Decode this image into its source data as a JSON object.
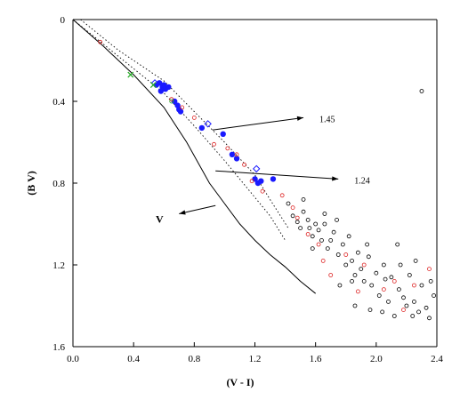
{
  "chart_data": {
    "type": "scatter",
    "title": "",
    "xlabel": "(V - I)",
    "ylabel": "(B   V)",
    "xlim": [
      0.0,
      2.4
    ],
    "ylim": [
      1.6,
      0.0
    ],
    "y_inverted": true,
    "x_ticks": [
      "0.0",
      "0.4",
      "0.8",
      "1.2",
      "1.6",
      "2.0",
      "2.4"
    ],
    "y_ticks": [
      "0",
      "0.4",
      "0.8",
      "1.2",
      "1.6"
    ],
    "grid": false,
    "legend": "none",
    "colors": {
      "blue": "#1a1aff",
      "red": "#dd2222",
      "green": "#22aa22",
      "black": "#000000"
    },
    "series": [
      {
        "marker": "filled-circle",
        "color": "blue",
        "points": [
          [
            0.55,
            0.32
          ],
          [
            0.57,
            0.31
          ],
          [
            0.58,
            0.35
          ],
          [
            0.59,
            0.33
          ],
          [
            0.6,
            0.32
          ],
          [
            0.61,
            0.34
          ],
          [
            0.63,
            0.33
          ],
          [
            0.67,
            0.4
          ],
          [
            0.69,
            0.42
          ],
          [
            0.7,
            0.44
          ],
          [
            0.71,
            0.45
          ],
          [
            0.85,
            0.53
          ],
          [
            0.99,
            0.56
          ],
          [
            1.05,
            0.66
          ],
          [
            1.08,
            0.68
          ],
          [
            1.2,
            0.78
          ],
          [
            1.22,
            0.8
          ],
          [
            1.24,
            0.79
          ],
          [
            1.32,
            0.78
          ]
        ]
      },
      {
        "marker": "open-diamond",
        "color": "blue",
        "points": [
          [
            0.54,
            0.31
          ],
          [
            0.6,
            0.33
          ],
          [
            0.89,
            0.51
          ],
          [
            1.21,
            0.73
          ]
        ]
      },
      {
        "marker": "open-circle",
        "color": "red",
        "points": [
          [
            0.18,
            0.11
          ],
          [
            0.65,
            0.39
          ],
          [
            0.72,
            0.43
          ],
          [
            0.8,
            0.48
          ],
          [
            0.93,
            0.61
          ],
          [
            1.02,
            0.63
          ],
          [
            1.08,
            0.66
          ],
          [
            1.13,
            0.71
          ],
          [
            1.18,
            0.79
          ],
          [
            1.25,
            0.84
          ],
          [
            1.38,
            0.86
          ],
          [
            1.45,
            0.92
          ],
          [
            1.55,
            1.05
          ],
          [
            1.62,
            1.1
          ],
          [
            1.7,
            1.25
          ],
          [
            1.8,
            1.15
          ],
          [
            1.92,
            1.2
          ],
          [
            2.05,
            1.32
          ],
          [
            2.12,
            1.28
          ],
          [
            2.18,
            1.42
          ],
          [
            2.25,
            1.3
          ],
          [
            1.48,
            0.97
          ],
          [
            1.65,
            1.18
          ],
          [
            1.88,
            1.33
          ],
          [
            2.35,
            1.22
          ]
        ]
      },
      {
        "marker": "open-circle",
        "color": "black",
        "points": [
          [
            1.42,
            0.9
          ],
          [
            1.45,
            0.96
          ],
          [
            1.48,
            0.99
          ],
          [
            1.5,
            1.02
          ],
          [
            1.52,
            0.94
          ],
          [
            1.55,
            0.98
          ],
          [
            1.56,
            1.02
          ],
          [
            1.58,
            1.06
          ],
          [
            1.6,
            1.0
          ],
          [
            1.62,
            1.03
          ],
          [
            1.64,
            1.08
          ],
          [
            1.66,
            0.95
          ],
          [
            1.68,
            1.12
          ],
          [
            1.7,
            1.08
          ],
          [
            1.72,
            1.04
          ],
          [
            1.75,
            1.15
          ],
          [
            1.78,
            1.1
          ],
          [
            1.8,
            1.2
          ],
          [
            1.82,
            1.06
          ],
          [
            1.84,
            1.18
          ],
          [
            1.86,
            1.25
          ],
          [
            1.88,
            1.14
          ],
          [
            1.9,
            1.22
          ],
          [
            1.92,
            1.28
          ],
          [
            1.95,
            1.16
          ],
          [
            1.97,
            1.3
          ],
          [
            2.0,
            1.24
          ],
          [
            2.02,
            1.35
          ],
          [
            2.05,
            1.2
          ],
          [
            2.08,
            1.38
          ],
          [
            2.1,
            1.26
          ],
          [
            2.12,
            1.45
          ],
          [
            2.15,
            1.32
          ],
          [
            2.18,
            1.36
          ],
          [
            2.2,
            1.4
          ],
          [
            2.22,
            1.25
          ],
          [
            2.25,
            1.38
          ],
          [
            2.28,
            1.43
          ],
          [
            2.3,
            1.3
          ],
          [
            2.33,
            1.41
          ],
          [
            2.35,
            1.46
          ],
          [
            2.38,
            1.35
          ],
          [
            1.58,
            1.12
          ],
          [
            1.74,
            0.98
          ],
          [
            1.86,
            1.4
          ],
          [
            1.96,
            1.42
          ],
          [
            2.06,
            1.27
          ],
          [
            2.16,
            1.2
          ],
          [
            2.26,
            1.18
          ],
          [
            1.52,
            0.88
          ],
          [
            1.66,
            1.0
          ],
          [
            1.76,
            1.3
          ],
          [
            1.94,
            1.1
          ],
          [
            2.04,
            1.43
          ],
          [
            2.14,
            1.1
          ],
          [
            2.24,
            1.45
          ],
          [
            2.36,
            1.28
          ],
          [
            1.84,
            1.28
          ],
          [
            2.3,
            0.35
          ]
        ]
      },
      {
        "marker": "cross",
        "color": "green",
        "points": [
          [
            0.38,
            0.27
          ],
          [
            0.53,
            0.32
          ]
        ]
      },
      {
        "marker": "open-circle",
        "color": "green",
        "points": [
          [
            0.65,
            0.4
          ]
        ]
      }
    ],
    "curves": [
      {
        "style": "solid",
        "points": [
          [
            0.0,
            0.0
          ],
          [
            0.2,
            0.13
          ],
          [
            0.4,
            0.27
          ],
          [
            0.6,
            0.43
          ],
          [
            0.75,
            0.6
          ],
          [
            0.9,
            0.8
          ],
          [
            1.0,
            0.9
          ],
          [
            1.1,
            1.0
          ],
          [
            1.2,
            1.08
          ],
          [
            1.3,
            1.15
          ],
          [
            1.4,
            1.21
          ],
          [
            1.5,
            1.28
          ],
          [
            1.6,
            1.34
          ]
        ]
      },
      {
        "style": "dotted",
        "points": [
          [
            0.0,
            0.0
          ],
          [
            0.3,
            0.18
          ],
          [
            0.6,
            0.36
          ],
          [
            0.8,
            0.52
          ],
          [
            1.0,
            0.69
          ],
          [
            1.2,
            0.87
          ],
          [
            1.3,
            0.96
          ],
          [
            1.4,
            1.08
          ]
        ]
      },
      {
        "style": "dotted",
        "points": [
          [
            0.05,
            0.0
          ],
          [
            0.3,
            0.15
          ],
          [
            0.6,
            0.3
          ],
          [
            0.8,
            0.45
          ],
          [
            1.0,
            0.6
          ],
          [
            1.2,
            0.76
          ],
          [
            1.3,
            0.88
          ],
          [
            1.42,
            1.02
          ]
        ]
      }
    ],
    "annotations": [
      {
        "text": "1.45",
        "from": [
          0.92,
          0.54
        ],
        "to": [
          1.52,
          0.48
        ]
      },
      {
        "text": "1.24",
        "from": [
          0.94,
          0.74
        ],
        "to": [
          1.75,
          0.78
        ]
      },
      {
        "text": "V",
        "from": [
          0.94,
          0.91
        ],
        "to": [
          0.7,
          0.95
        ]
      }
    ]
  }
}
